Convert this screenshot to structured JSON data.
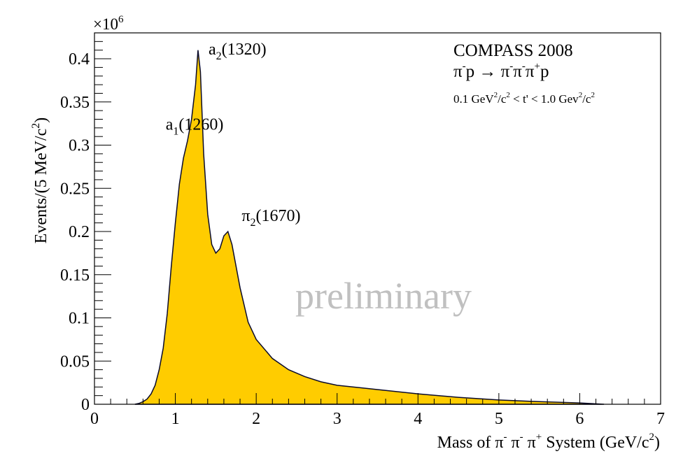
{
  "chart_data": {
    "type": "area",
    "xlabel": {
      "prefix": "Mass of ",
      "p1": "π",
      "s1": "-",
      "p2": " π",
      "s2": "-",
      "p3": " π",
      "s3": "+",
      "mid": " System (GeV/c",
      "s4": "2",
      "end": ")"
    },
    "ylabel": {
      "pre": "Events/(5 MeV/c",
      "sup": "2",
      "post": ")"
    },
    "y_multiplier": {
      "base": "×10",
      "exp": "6"
    },
    "xlim": [
      0,
      7
    ],
    "ylim": [
      0,
      0.43
    ],
    "x_ticks": [
      "0",
      "1",
      "2",
      "3",
      "4",
      "5",
      "6",
      "7"
    ],
    "y_ticks": [
      "0",
      "0.05",
      "0.1",
      "0.15",
      "0.2",
      "0.25",
      "0.3",
      "0.35",
      "0.4"
    ],
    "fill_color": "#ffcc00",
    "line_color": "#0a0a2a",
    "grid": false,
    "legend": null,
    "x": [
      0.5,
      0.55,
      0.6,
      0.65,
      0.7,
      0.75,
      0.8,
      0.85,
      0.9,
      0.95,
      1.0,
      1.05,
      1.1,
      1.15,
      1.2,
      1.25,
      1.28,
      1.31,
      1.35,
      1.4,
      1.45,
      1.5,
      1.55,
      1.6,
      1.65,
      1.7,
      1.8,
      1.9,
      2.0,
      2.2,
      2.4,
      2.6,
      2.8,
      3.0,
      3.5,
      4.0,
      4.5,
      5.0,
      5.5,
      6.0,
      6.3
    ],
    "y": [
      0.0,
      0.001,
      0.003,
      0.006,
      0.012,
      0.022,
      0.04,
      0.065,
      0.105,
      0.16,
      0.21,
      0.255,
      0.285,
      0.305,
      0.33,
      0.37,
      0.41,
      0.385,
      0.29,
      0.22,
      0.185,
      0.175,
      0.18,
      0.195,
      0.2,
      0.185,
      0.135,
      0.095,
      0.075,
      0.053,
      0.04,
      0.032,
      0.026,
      0.022,
      0.017,
      0.012,
      0.008,
      0.005,
      0.003,
      0.0015,
      0.0
    ],
    "annotations": {
      "a1": {
        "base": "a",
        "sub": "1",
        "rest": "(1260)",
        "x": 0.88,
        "y": 0.318
      },
      "a2": {
        "base": "a",
        "sub": "2",
        "rest": "(1320)",
        "x": 1.41,
        "y": 0.405
      },
      "pi2": {
        "base": "π",
        "sub": "2",
        "rest": "(1670)",
        "x": 1.82,
        "y": 0.212
      }
    },
    "info": {
      "line1": "COMPASS 2008",
      "line2": {
        "p1": "π",
        "s1": "-",
        "p2": "p → π",
        "s2": "-",
        "p3": "π",
        "s3": "-",
        "p4": "π",
        "s4": "+",
        "p5": "p"
      },
      "line3": {
        "t1": "0.1 GeV",
        "s1": "2",
        "t2": "/c",
        "s2": "2",
        "t3": " < t' < 1.0 Gev",
        "s3": "2",
        "t4": "/c",
        "s4": "2"
      }
    },
    "watermark": "preliminary",
    "watermark_color": "#c0c0c0"
  }
}
